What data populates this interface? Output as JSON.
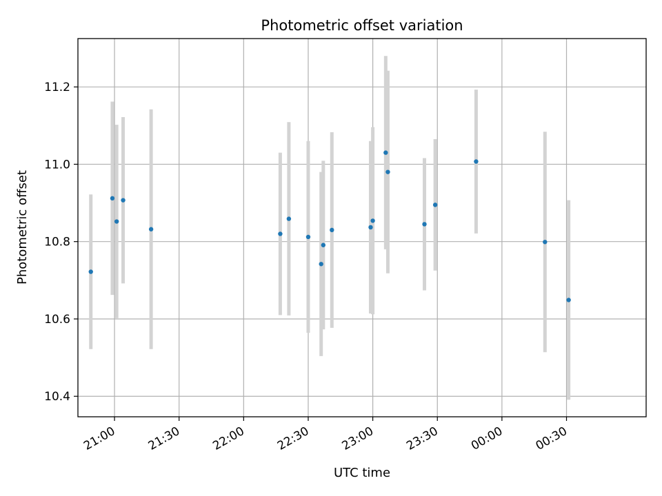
{
  "chart_data": {
    "type": "scatter",
    "title": "Photometric offset variation",
    "xlabel": "UTC time",
    "ylabel": "Photometric offset",
    "x_tick_labels": [
      "21:00",
      "21:30",
      "22:00",
      "22:30",
      "23:00",
      "23:30",
      "00:00",
      "00:30"
    ],
    "x_ticks": [
      "21:00",
      "21:30",
      "22:00",
      "22:30",
      "23:00",
      "23:30",
      "00:00",
      "00:30"
    ],
    "y_ticks": [
      10.4,
      10.6,
      10.8,
      11.0,
      11.2
    ],
    "y_tick_labels": [
      "10.4",
      "10.6",
      "10.8",
      "11.0",
      "11.2"
    ],
    "xlim": [
      "20:43",
      "01:07"
    ],
    "ylim": [
      10.347,
      11.325
    ],
    "grid": true,
    "point_color": "#1f77b4",
    "errorbar_color": "#d3d3d3",
    "series": [
      {
        "points": [
          {
            "time": "20:49",
            "y": 10.722,
            "err": 0.2
          },
          {
            "time": "20:59",
            "y": 10.912,
            "err": 0.25
          },
          {
            "time": "21:01",
            "y": 10.852,
            "err": 0.25
          },
          {
            "time": "21:04",
            "y": 10.907,
            "err": 0.215
          },
          {
            "time": "21:17",
            "y": 10.832,
            "err": 0.31
          },
          {
            "time": "22:17",
            "y": 10.82,
            "err": 0.21
          },
          {
            "time": "22:21",
            "y": 10.859,
            "err": 0.25
          },
          {
            "time": "22:30",
            "y": 10.812,
            "err": 0.248
          },
          {
            "time": "22:36",
            "y": 10.742,
            "err": 0.238
          },
          {
            "time": "22:37",
            "y": 10.791,
            "err": 0.218
          },
          {
            "time": "22:41",
            "y": 10.83,
            "err": 0.253
          },
          {
            "time": "22:59",
            "y": 10.837,
            "err": 0.223
          },
          {
            "time": "23:00",
            "y": 10.854,
            "err": 0.242
          },
          {
            "time": "23:06",
            "y": 11.03,
            "err": 0.25
          },
          {
            "time": "23:07",
            "y": 10.98,
            "err": 0.262
          },
          {
            "time": "23:24",
            "y": 10.845,
            "err": 0.171
          },
          {
            "time": "23:29",
            "y": 10.895,
            "err": 0.17
          },
          {
            "time": "23:48",
            "y": 11.007,
            "err": 0.186
          },
          {
            "time": "00:20",
            "y": 10.799,
            "err": 0.285
          },
          {
            "time": "00:31",
            "y": 10.649,
            "err": 0.258
          }
        ]
      }
    ]
  }
}
